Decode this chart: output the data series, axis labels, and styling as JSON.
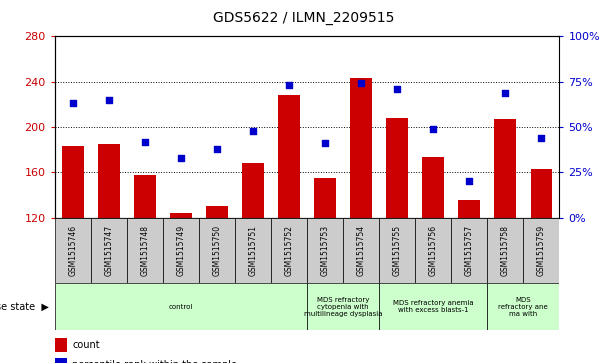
{
  "title": "GDS5622 / ILMN_2209515",
  "samples": [
    "GSM1515746",
    "GSM1515747",
    "GSM1515748",
    "GSM1515749",
    "GSM1515750",
    "GSM1515751",
    "GSM1515752",
    "GSM1515753",
    "GSM1515754",
    "GSM1515755",
    "GSM1515756",
    "GSM1515757",
    "GSM1515758",
    "GSM1515759"
  ],
  "counts": [
    183,
    185,
    158,
    124,
    130,
    168,
    228,
    155,
    243,
    208,
    174,
    136,
    207,
    163
  ],
  "percentiles": [
    63,
    65,
    42,
    33,
    38,
    48,
    73,
    41,
    74,
    71,
    49,
    20,
    69,
    44
  ],
  "ylim_left": [
    120,
    280
  ],
  "ylim_right": [
    0,
    100
  ],
  "yticks_left": [
    120,
    160,
    200,
    240,
    280
  ],
  "yticks_right": [
    0,
    25,
    50,
    75,
    100
  ],
  "bar_color": "#cc0000",
  "dot_color": "#0000cc",
  "background_color": "#ffffff",
  "cell_color": "#cccccc",
  "disease_color": "#ccffcc",
  "disease_groups": [
    {
      "label": "control",
      "start": 0,
      "end": 7
    },
    {
      "label": "MDS refractory\ncytopenia with\nmultilineage dysplasia",
      "start": 7,
      "end": 9
    },
    {
      "label": "MDS refractory anemia\nwith excess blasts-1",
      "start": 9,
      "end": 12
    },
    {
      "label": "MDS\nrefractory ane\nma with",
      "start": 12,
      "end": 14
    }
  ]
}
